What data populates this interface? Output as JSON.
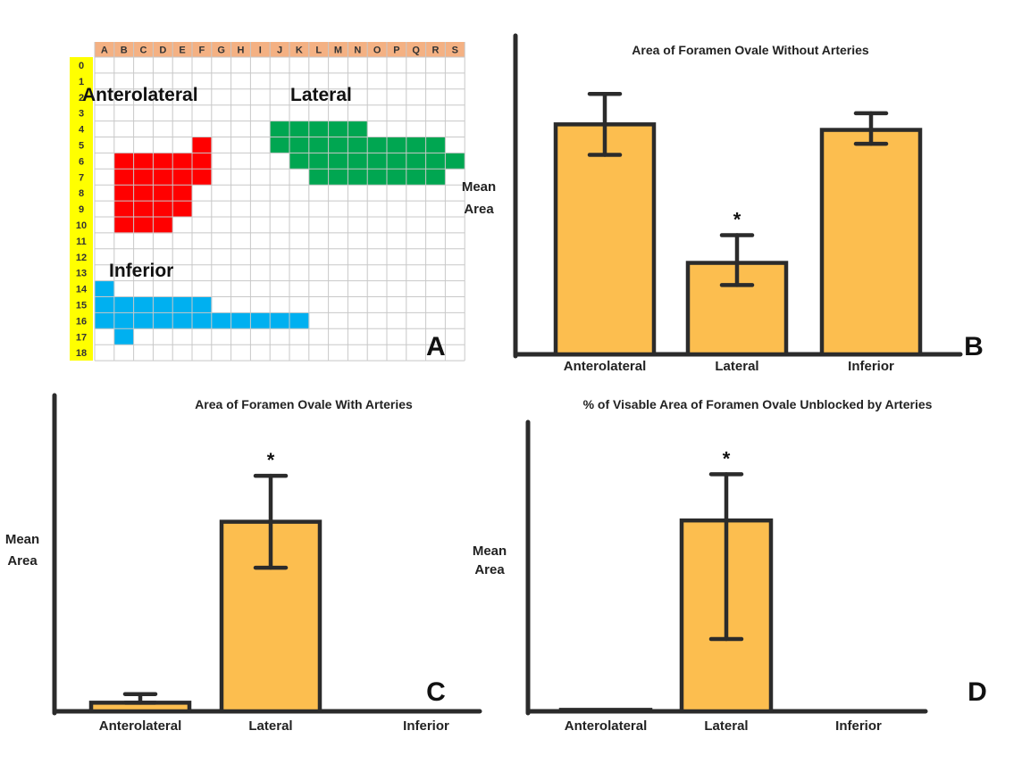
{
  "colors": {
    "bar_fill": "#FCBE4F",
    "bar_stroke": "#2B2B2B",
    "axis": "#2B2B2B",
    "grid_line": "#C8C8C8",
    "col_header_bg": "#F4B183",
    "row_header_bg": "#FFFF00",
    "anterolateral_region": "#FF0000",
    "lateral_region": "#00A651",
    "inferior_region": "#00B0F0"
  },
  "panel_a": {
    "letter": "A",
    "columns": [
      "A",
      "B",
      "C",
      "D",
      "E",
      "F",
      "G",
      "H",
      "I",
      "J",
      "K",
      "L",
      "M",
      "N",
      "O",
      "P",
      "Q",
      "R",
      "S"
    ],
    "rows": [
      "0",
      "1",
      "2",
      "3",
      "4",
      "5",
      "6",
      "7",
      "8",
      "9",
      "10",
      "11",
      "12",
      "13",
      "14",
      "15",
      "16",
      "17",
      "18"
    ],
    "labels": {
      "anterolateral": "Anterolateral",
      "lateral": "Lateral",
      "inferior": "Inferior"
    },
    "regions": {
      "anterolateral": [
        [
          5,
          5,
          5
        ],
        [
          6,
          1,
          5
        ],
        [
          7,
          1,
          5
        ],
        [
          8,
          1,
          4
        ],
        [
          9,
          1,
          4
        ],
        [
          10,
          1,
          3
        ]
      ],
      "lateral": [
        [
          4,
          9,
          13
        ],
        [
          5,
          9,
          17
        ],
        [
          6,
          10,
          18
        ],
        [
          7,
          11,
          17
        ]
      ],
      "inferior": [
        [
          14,
          0,
          0
        ],
        [
          15,
          0,
          5
        ],
        [
          16,
          0,
          10
        ],
        [
          17,
          1,
          1
        ]
      ]
    }
  },
  "chart_data": [
    {
      "panel": "B",
      "type": "bar",
      "title": "Area of Foramen Ovale Without Arteries",
      "xlabel": "",
      "ylabel": "Mean Area",
      "ylabel_lines": [
        "Mean",
        "Area"
      ],
      "categories": [
        "Anterolateral",
        "Lateral",
        "Inferior"
      ],
      "values": [
        83,
        33,
        81
      ],
      "error_low": [
        72,
        25,
        76
      ],
      "error_high": [
        94,
        43,
        87
      ],
      "ylim": [
        0,
        115
      ],
      "significance": [
        null,
        "*",
        null
      ]
    },
    {
      "panel": "C",
      "type": "bar",
      "title": "Area of Foramen Ovale With Arteries",
      "xlabel": "",
      "ylabel": "Mean Area",
      "ylabel_lines": [
        "Mean",
        "Area"
      ],
      "categories": [
        "Anterolateral",
        "Lateral",
        "Inferior"
      ],
      "values": [
        3,
        66,
        0
      ],
      "error_low": [
        3,
        50,
        0
      ],
      "error_high": [
        6,
        82,
        0
      ],
      "ylim": [
        0,
        110
      ],
      "significance": [
        null,
        "*",
        null
      ]
    },
    {
      "panel": "D",
      "type": "bar",
      "title": "% of Visable Area of Foramen Ovale Unblocked by Arteries",
      "xlabel": "",
      "ylabel": "Mean Area",
      "ylabel_lines": [
        "Mean",
        "Area"
      ],
      "categories": [
        "Anterolateral",
        "Lateral",
        "Inferior"
      ],
      "values": [
        0.5,
        66,
        0
      ],
      "error_low": [
        0.5,
        25,
        0
      ],
      "error_high": [
        0.5,
        82,
        0
      ],
      "ylim": [
        0,
        100
      ],
      "significance": [
        null,
        "*",
        null
      ]
    }
  ]
}
